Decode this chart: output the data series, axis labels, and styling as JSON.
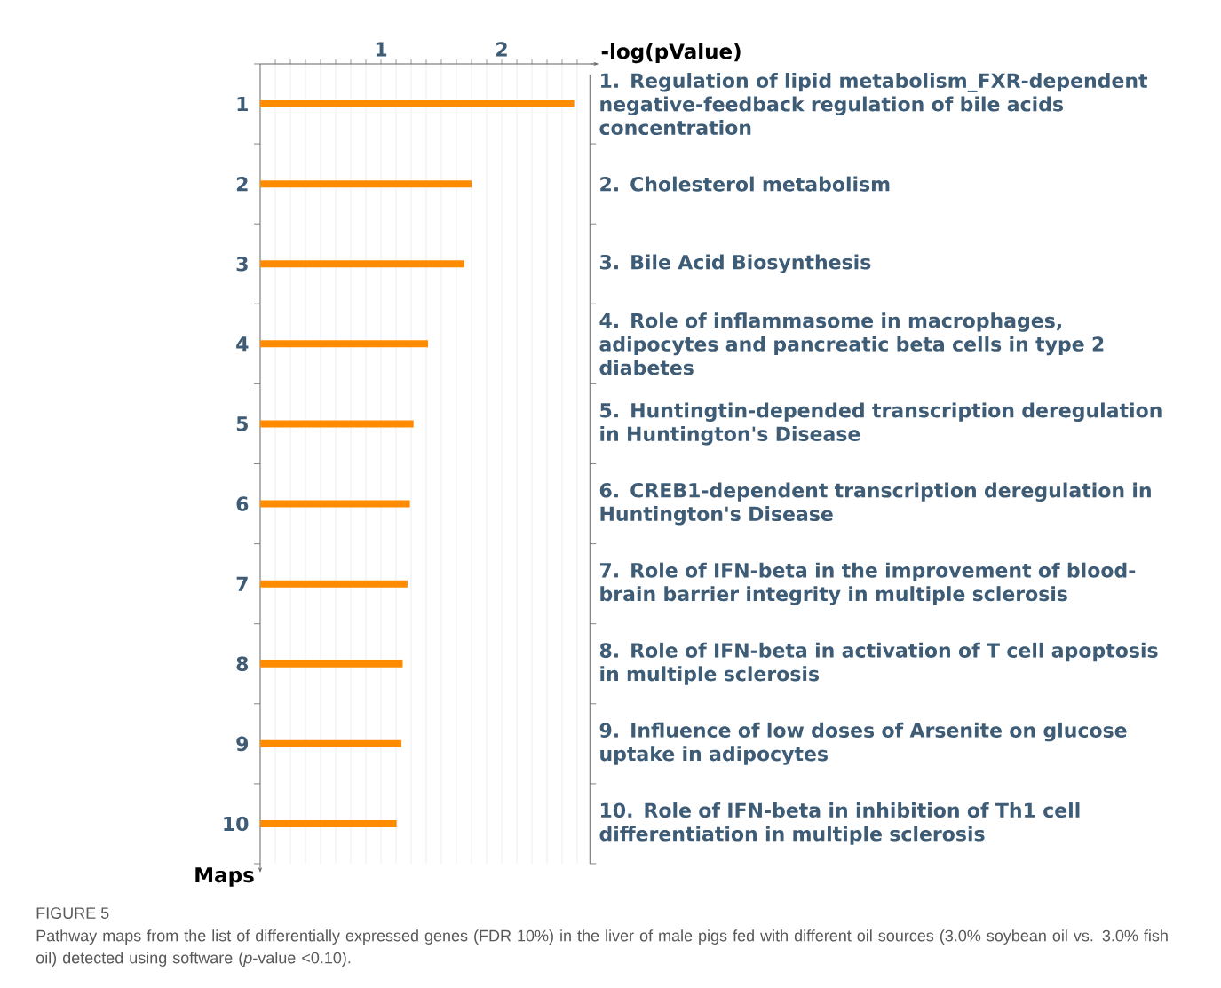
{
  "chart_data": {
    "type": "bar",
    "orientation": "horizontal",
    "xlabel": "-log(pValue)",
    "ylabel": "Maps",
    "color": "#ff8c00",
    "grid": "x",
    "categories": [
      "1",
      "2",
      "3",
      "4",
      "5",
      "6",
      "7",
      "8",
      "9",
      "10"
    ],
    "values": [
      2.6,
      1.75,
      1.69,
      1.39,
      1.27,
      1.24,
      1.22,
      1.18,
      1.17,
      1.13
    ],
    "xlim": [
      0,
      2.73
    ],
    "xticks": [
      {
        "value": 0.125,
        "label": null
      },
      {
        "value": 0.25,
        "label": null
      },
      {
        "value": 0.375,
        "label": null
      },
      {
        "value": 0.5,
        "label": null
      },
      {
        "value": 0.625,
        "label": null
      },
      {
        "value": 0.75,
        "label": null
      },
      {
        "value": 0.875,
        "label": null
      },
      1,
      {
        "value": 1.125,
        "label": null
      },
      {
        "value": 1.25,
        "label": null
      },
      {
        "value": 1.375,
        "label": null
      },
      {
        "value": 1.5,
        "label": null
      },
      {
        "value": 1.625,
        "label": null
      },
      {
        "value": 1.75,
        "label": null
      },
      {
        "value": 1.875,
        "label": null
      },
      2,
      {
        "value": 2.125,
        "label": null
      },
      {
        "value": 2.25,
        "label": null
      },
      {
        "value": 2.375,
        "label": null
      },
      {
        "value": 2.5,
        "label": null
      },
      {
        "value": 2.625,
        "label": null
      }
    ],
    "annotations": [
      "1. Regulation of lipid metabolism_FXR-dependent negative-feedback regulation of bile acids concentration",
      "2. Cholesterol metabolism",
      "3. Bile Acid Biosynthesis",
      "4. Role of inflammasome in macrophages, adipocytes and pancreatic beta cells in type 2 diabetes",
      "5. Huntingtin-depended transcription deregulation in Huntington's Disease",
      "6. CREB1-dependent transcription deregulation in Huntington's Disease",
      "7. Role of IFN-beta in the improvement of blood-brain barrier integrity in multiple sclerosis",
      "8. Role of IFN-beta in activation of T cell apoptosis in multiple sclerosis",
      "9. Influence of low doses of Arsenite on glucose uptake in adipocytes",
      "10. Role of IFN-beta in inhibition of Th1 cell differentiation in multiple sclerosis",
      "FIGURE 5",
      "Pathway maps from the list of differentially expressed genes (FDR 10%) in the liver of male pigs fed with different oil sources (3.0% soybean oil vs. 3.0% fish oil) detected using software (*p*-value <0.10)."
    ]
  }
}
